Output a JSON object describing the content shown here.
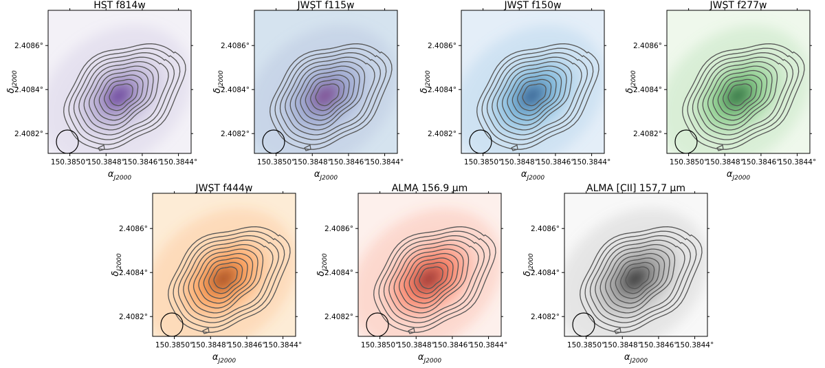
{
  "chart_data": {
    "type": "image-cutouts",
    "description_units": "sky coordinates, degrees",
    "x_axis_label": "α",
    "x_axis_subscript": "J2000",
    "y_axis_label": "δ",
    "y_axis_subscript": "J2000",
    "x_ticks": [
      {
        "value": 150.385,
        "label": "150.3850°"
      },
      {
        "value": 150.3848,
        "label": "150.3848°"
      },
      {
        "value": 150.3846,
        "label": "150.3846°"
      },
      {
        "value": 150.3844,
        "label": "150.3844°"
      }
    ],
    "y_ticks": [
      {
        "value": 2.4086,
        "label": "2.4086°"
      },
      {
        "value": 2.4084,
        "label": "2.4084°"
      },
      {
        "value": 2.4082,
        "label": "2.4082°"
      }
    ],
    "xlim": [
      150.38512,
      150.38433
    ],
    "ylim": [
      2.40811,
      2.40876
    ],
    "contour_levels": 10,
    "beam": "ellipse, lower-left",
    "panels": [
      {
        "title": "HST f814w",
        "colormap": "purple",
        "colors": [
          "#f3f1f7",
          "#a99dcb",
          "#3f007d"
        ],
        "peak": 0.92
      },
      {
        "title": "JWST f115w",
        "colormap": "blue-purple",
        "colors": [
          "#d5e3ef",
          "#8c96c6",
          "#6a0f6e"
        ],
        "peak": 0.9
      },
      {
        "title": "JWST f150w",
        "colormap": "blue",
        "colors": [
          "#e4eef8",
          "#6aaed6",
          "#08306b"
        ],
        "peak": 0.92
      },
      {
        "title": "JWST f277w",
        "colormap": "green",
        "colors": [
          "#eff8ec",
          "#74c476",
          "#00441b"
        ],
        "peak": 0.95
      },
      {
        "title": "JWST f444w",
        "colormap": "orange",
        "colors": [
          "#fdecd6",
          "#fd8d3c",
          "#7f2704"
        ],
        "peak": 0.95
      },
      {
        "title": "ALMA 156.9 μm",
        "colormap": "red",
        "colors": [
          "#fdf0ec",
          "#fb6a4a",
          "#67000d"
        ],
        "peak": 0.9
      },
      {
        "title": "ALMA [CII] 157.7 μm",
        "colormap": "gray",
        "colors": [
          "#f8f8f8",
          "#8f8f8f",
          "#050505"
        ],
        "peak": 1.0
      }
    ]
  }
}
